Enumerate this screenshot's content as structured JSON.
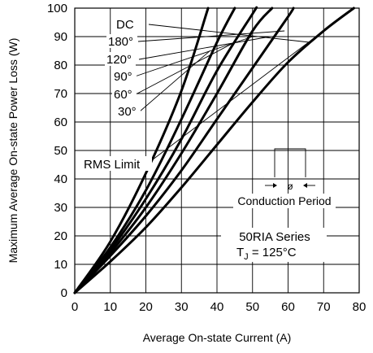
{
  "chart_data": {
    "type": "line",
    "title": "",
    "xlabel": "Average On-state Current (A)",
    "ylabel": "Maximum Average On-state Power Loss (W)",
    "xlim": [
      0,
      80
    ],
    "ylim": [
      0,
      100
    ],
    "x_ticks": [
      "0",
      "10",
      "20",
      "30",
      "40",
      "50",
      "60",
      "70",
      "80"
    ],
    "y_ticks": [
      "0",
      "10",
      "20",
      "30",
      "40",
      "50",
      "60",
      "70",
      "80",
      "90",
      "100"
    ],
    "grid": true,
    "series": [
      {
        "name": "30°",
        "x": [
          0,
          10,
          20,
          30,
          37.5
        ],
        "y": [
          0,
          18,
          42,
          71,
          100
        ]
      },
      {
        "name": "60°",
        "x": [
          0,
          10,
          20,
          30,
          40,
          45
        ],
        "y": [
          0,
          16,
          36,
          61,
          88,
          100
        ]
      },
      {
        "name": "90°",
        "x": [
          0,
          10,
          20,
          30,
          40,
          50,
          51
        ],
        "y": [
          0,
          15,
          33,
          54,
          78,
          98,
          100
        ]
      },
      {
        "name": "120°",
        "x": [
          0,
          10,
          20,
          30,
          40,
          50,
          55.5
        ],
        "y": [
          0,
          14,
          30,
          49,
          70,
          92,
          100
        ]
      },
      {
        "name": "180°",
        "x": [
          0,
          10,
          20,
          30,
          40,
          50,
          60,
          61.5
        ],
        "y": [
          0,
          13,
          27,
          43,
          61,
          79,
          97,
          100
        ]
      },
      {
        "name": "DC",
        "x": [
          0,
          10,
          20,
          30,
          40,
          50,
          60,
          70,
          78.5
        ],
        "y": [
          0,
          11,
          23,
          37,
          52,
          67,
          81,
          92,
          100
        ]
      }
    ],
    "rms_limit": {
      "label": "RMS Limit",
      "x": [
        20,
        78.5
      ],
      "y": [
        45,
        100
      ]
    },
    "annotations": {
      "conduction": "Conduction Period",
      "phi": "ø",
      "series_name": "50RIA Series",
      "tj_symbol": "T",
      "tj_subscript": "J",
      "tj_value": " = 125°C"
    }
  }
}
